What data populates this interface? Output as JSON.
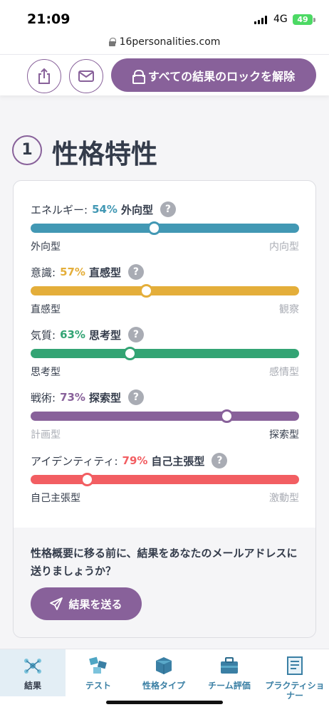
{
  "status_bar": {
    "time": "21:09",
    "network": "4G",
    "battery": "49"
  },
  "browser": {
    "url": "16personalities.com"
  },
  "toolbar": {
    "unlock_label": "すべての結果のロックを解除",
    "share_icon": "share-icon",
    "mail_icon": "mail-icon"
  },
  "section": {
    "number": "1",
    "title": "性格特性"
  },
  "traits": [
    {
      "label": "エネルギー:",
      "percent": "54%",
      "type": "外向型",
      "left": "外向型",
      "right": "内向型",
      "active_side": "left",
      "position": 0.46,
      "color": "#4298b4",
      "help": "?"
    },
    {
      "label": "意識:",
      "percent": "57%",
      "type": "直感型",
      "left": "直感型",
      "right": "観察",
      "active_side": "left",
      "position": 0.43,
      "color": "#e4ae3a",
      "help": "?"
    },
    {
      "label": "気質:",
      "percent": "63%",
      "type": "思考型",
      "left": "思考型",
      "right": "感情型",
      "active_side": "left",
      "position": 0.37,
      "color": "#33a474",
      "help": "?"
    },
    {
      "label": "戦術:",
      "percent": "73%",
      "type": "探索型",
      "left": "計画型",
      "right": "探索型",
      "active_side": "right",
      "position": 0.73,
      "color": "#88619a",
      "help": "?"
    },
    {
      "label": "アイデンティティ:",
      "percent": "79%",
      "type": "自己主張型",
      "left": "自己主張型",
      "right": "激動型",
      "active_side": "left",
      "position": 0.21,
      "color": "#f25e62",
      "help": "?"
    }
  ],
  "mail": {
    "prompt": "性格概要に移る前に、結果をあなたのメールアドレスに送りましょうか？",
    "button": "結果を送る"
  },
  "nav": [
    {
      "label": "結果",
      "icon": "results-icon",
      "active": true
    },
    {
      "label": "テスト",
      "icon": "test-icon",
      "active": false
    },
    {
      "label": "性格タイプ",
      "icon": "personality-types-icon",
      "active": false
    },
    {
      "label": "チーム評価",
      "icon": "team-assessment-icon",
      "active": false
    },
    {
      "label": "プラクティショナー",
      "icon": "practitioner-icon",
      "active": false
    }
  ],
  "colors": {
    "accent": "#88619a",
    "text": "#343c4b",
    "muted": "#a9acb4"
  }
}
